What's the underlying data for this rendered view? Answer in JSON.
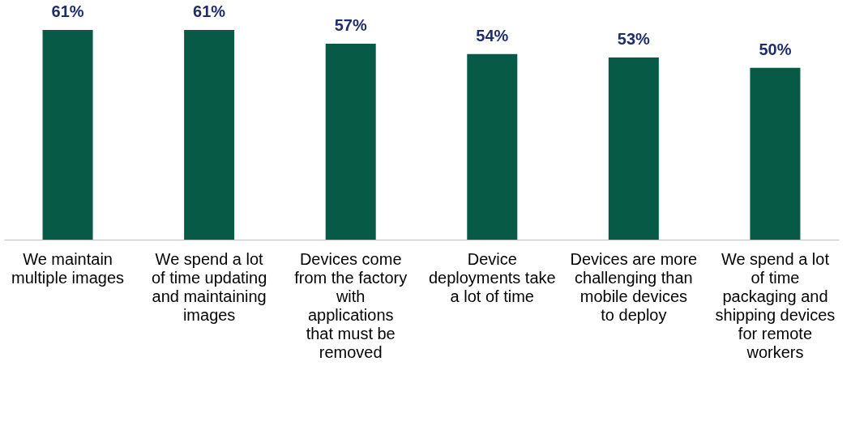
{
  "chart_data": {
    "type": "bar",
    "categories": [
      "We maintain multiple images",
      "We spend a lot of time updating and maintaining images",
      "Devices come from the factory with applications that must be removed",
      "Device deployments take a lot of time",
      "Devices are more challenging than mobile devices to deploy",
      "We spend a lot of time packaging and shipping devices for remote workers"
    ],
    "values": [
      61,
      61,
      57,
      54,
      53,
      50
    ],
    "color": "#065a46",
    "value_labels": [
      "61%",
      "61%",
      "57%",
      "54%",
      "53%",
      "50%"
    ]
  }
}
